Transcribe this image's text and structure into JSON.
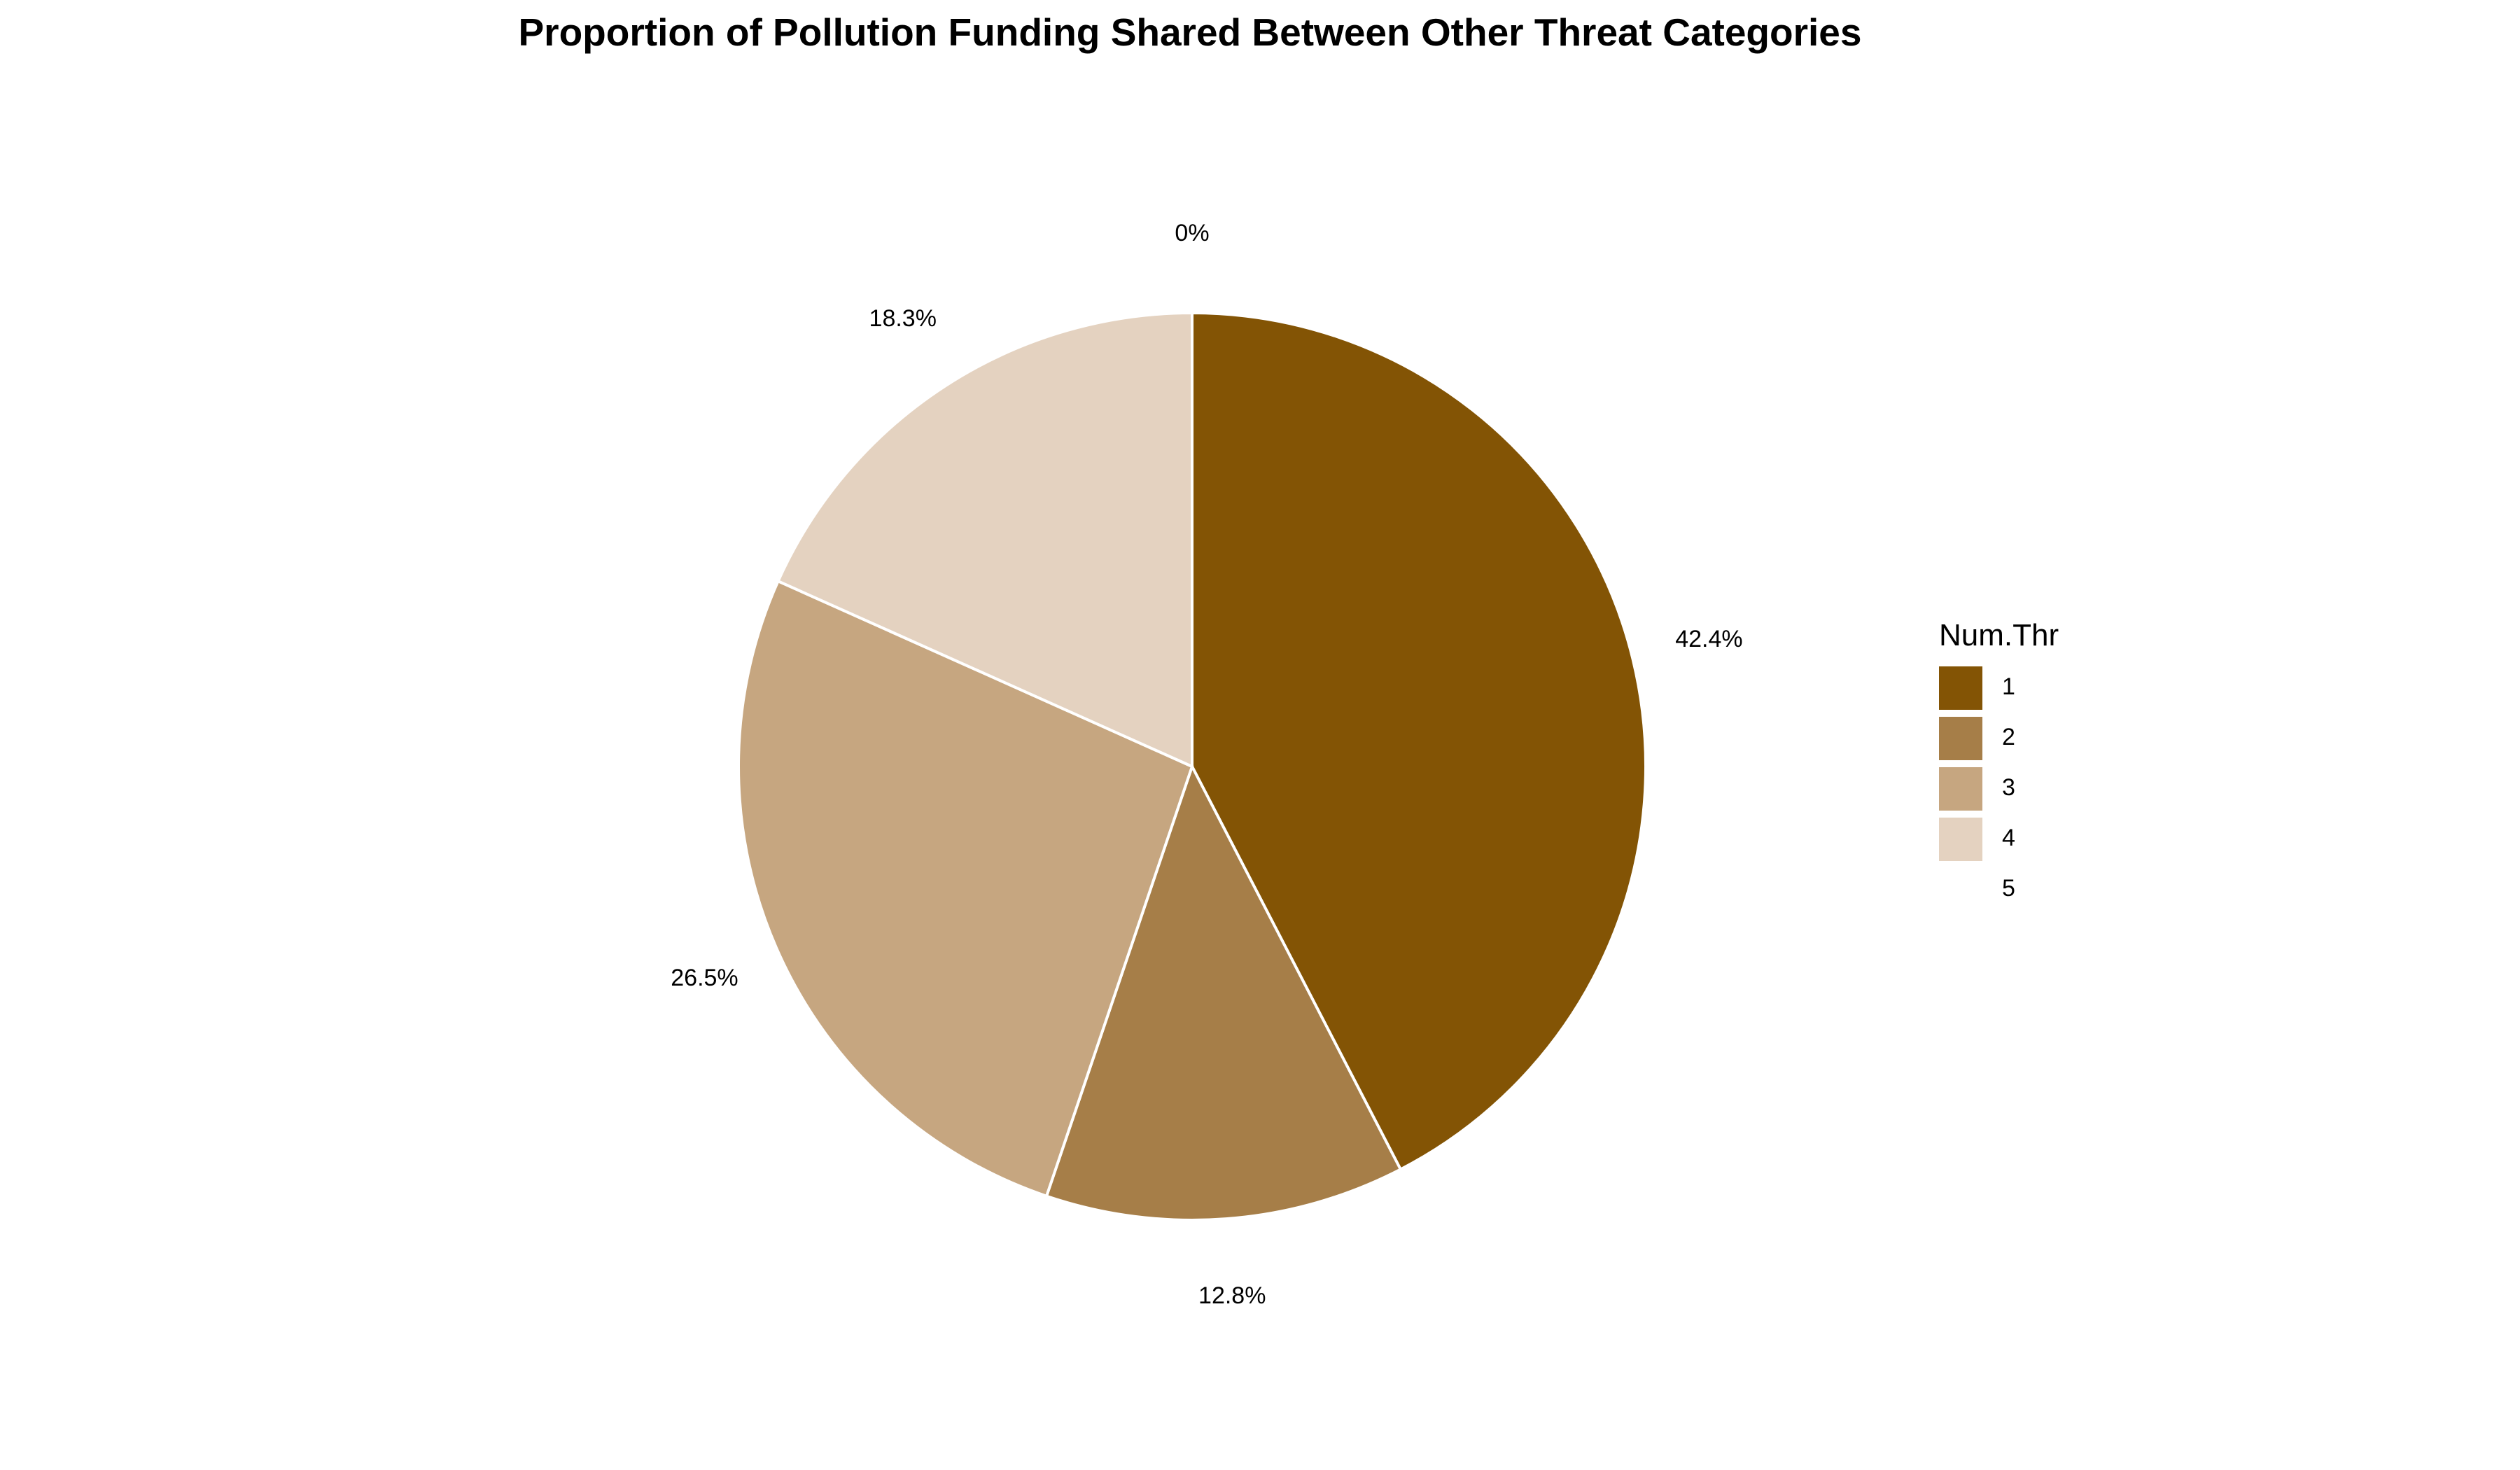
{
  "chart_data": {
    "type": "pie",
    "title": "Proportion of Pollution Funding Shared Between Other Threat Categories",
    "legend": {
      "title": "Num.Thr",
      "placement": "right"
    },
    "start_angle_deg": 0,
    "direction": "clockwise",
    "slices": [
      {
        "category": "1",
        "value": 42.4,
        "label": "42.4%",
        "color": "#835405"
      },
      {
        "category": "2",
        "value": 12.8,
        "label": "12.8%",
        "color": "#A67E48"
      },
      {
        "category": "3",
        "value": 26.5,
        "label": "26.5%",
        "color": "#C6A680"
      },
      {
        "category": "4",
        "value": 18.3,
        "label": "18.3%",
        "color": "#E4D2C0"
      },
      {
        "category": "5",
        "value": 0,
        "label": "0%",
        "color": "#FFFFFF"
      }
    ]
  }
}
